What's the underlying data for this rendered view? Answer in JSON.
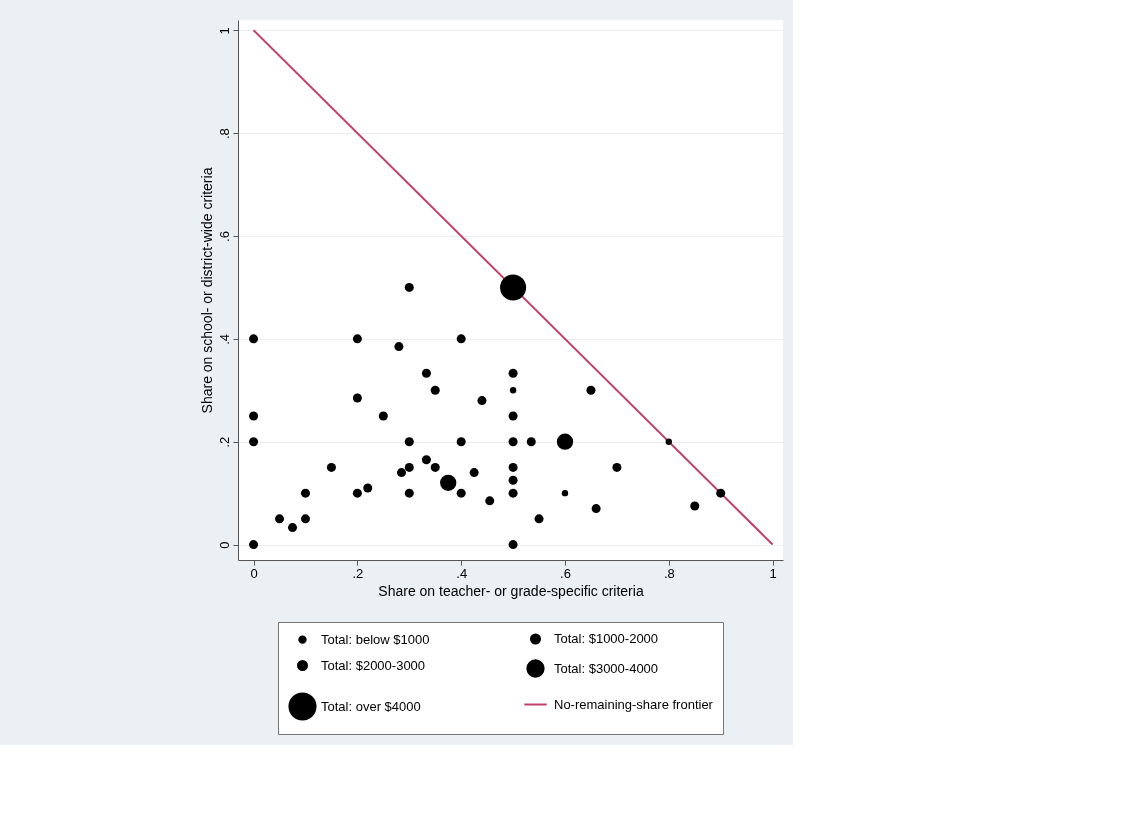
{
  "chart_data": {
    "type": "bubble",
    "xlabel": "Share on teacher- or grade-specific criteria",
    "ylabel": "Share on school- or district-wide criteria",
    "xlim": [
      -0.03,
      1.02
    ],
    "ylim": [
      -0.03,
      1.02
    ],
    "xticks": [
      0,
      {
        "value": 0.2,
        "label": ".2"
      },
      {
        "value": 0.4,
        "label": ".4"
      },
      {
        "value": 0.6,
        "label": ".6"
      },
      {
        "value": 0.8,
        "label": ".8"
      },
      1
    ],
    "yticks": [
      0,
      {
        "value": 0.2,
        "label": ".2"
      },
      {
        "value": 0.4,
        "label": ".4"
      },
      {
        "value": 0.6,
        "label": ".6"
      },
      {
        "value": 0.8,
        "label": ".8"
      },
      1
    ],
    "grid": "y",
    "legend": "bottom",
    "marker": "circle",
    "series": [
      {
        "name": "Total: below $1000",
        "color": "#000000",
        "x": [
          0.5,
          0.6,
          0.8
        ],
        "values": [
          0.3,
          0.1,
          0.2
        ],
        "sizes": [
          0.06,
          0.06,
          0.06
        ]
      },
      {
        "name": "Total: $1000-2000",
        "color": "#000000"
      },
      {
        "name": "Total: $2000-3000",
        "color": "#000000",
        "x": [
          0,
          0.2,
          0.28,
          0.4,
          0.3,
          0.333,
          0.35,
          0.44,
          0.2,
          0,
          0.25,
          0,
          0.3,
          0.4,
          0.15,
          0.285,
          0.3,
          0.333,
          0.35,
          0.425,
          0.4,
          0.455,
          0.3,
          0.2,
          0.22,
          0.1,
          0.1,
          0.05,
          0.075,
          0,
          0.5,
          0.5,
          0.5,
          0.535,
          0.5,
          0.5,
          0.5,
          0.5,
          0.55,
          0.65,
          0.7,
          0.66,
          0.85,
          0.9
        ],
        "values": [
          0.4,
          0.4,
          0.385,
          0.4,
          0.5,
          0.333,
          0.3,
          0.28,
          0.285,
          0.25,
          0.25,
          0.2,
          0.2,
          0.2,
          0.15,
          0.14,
          0.15,
          0.165,
          0.15,
          0.14,
          0.1,
          0.085,
          0.1,
          0.1,
          0.11,
          0.1,
          0.05,
          0.05,
          0.033,
          0,
          0.333,
          0.25,
          0.2,
          0.2,
          0.15,
          0.125,
          0.1,
          0,
          0.05,
          0.3,
          0.15,
          0.07,
          0.075,
          0.1
        ],
        "sizes": [
          0.12,
          0.12,
          0.12,
          0.12,
          0.12,
          0.12,
          0.12,
          0.12,
          0.12,
          0.12,
          0.12,
          0.12,
          0.12,
          0.12,
          0.12,
          0.12,
          0.12,
          0.12,
          0.12,
          0.12,
          0.12,
          0.12,
          0.12,
          0.12,
          0.12,
          0.12,
          0.12,
          0.12,
          0.12,
          0.12,
          0.12,
          0.12,
          0.12,
          0.12,
          0.12,
          0.12,
          0.12,
          0.12,
          0.12,
          0.12,
          0.12,
          0.12,
          0.12,
          0.12
        ]
      },
      {
        "name": "Total: $3000-4000",
        "color": "#000000",
        "x": [
          0.375,
          0.6
        ],
        "values": [
          0.12,
          0.2
        ],
        "sizes": [
          0.39,
          0.39
        ]
      },
      {
        "name": "Total: over $4000",
        "color": "#000000",
        "x": [
          0.5
        ],
        "values": [
          0.5
        ],
        "sizes": [
          1
        ]
      },
      {
        "name": "No-remaining-share frontier",
        "color": "#c0406a",
        "type": "line",
        "marker": "none",
        "x": [
          0,
          1
        ],
        "values": [
          1,
          0
        ]
      }
    ]
  }
}
